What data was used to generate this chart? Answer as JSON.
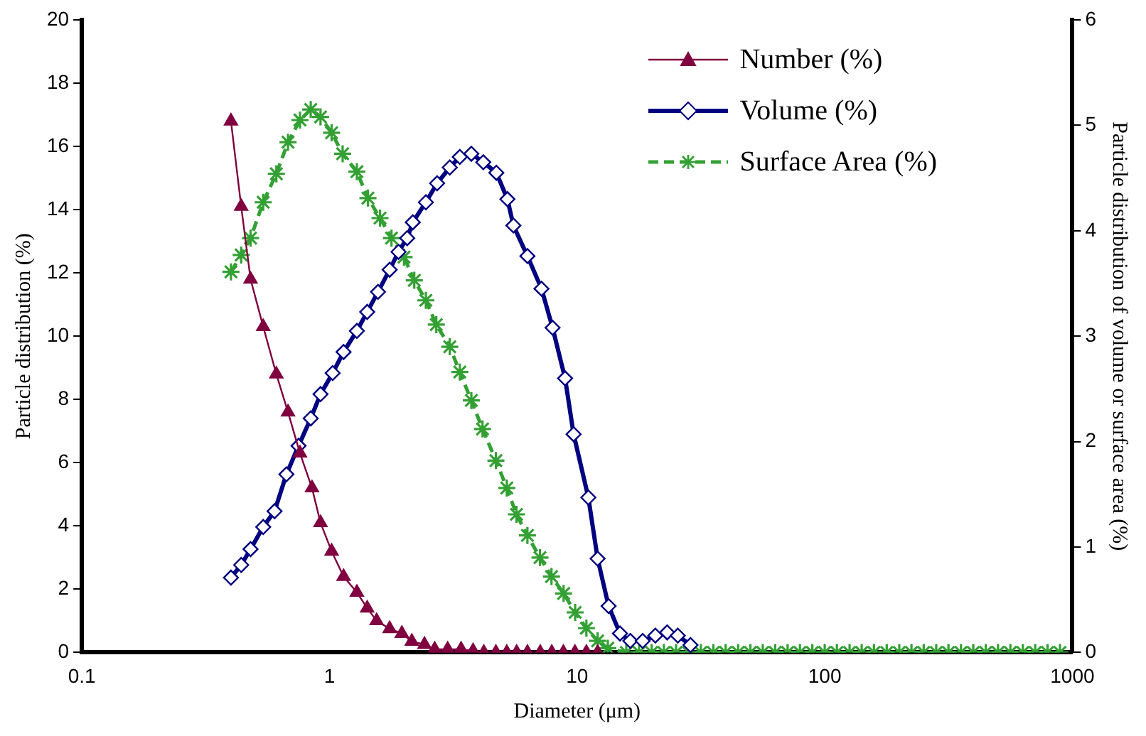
{
  "chart_data": {
    "type": "line",
    "xlabel": "Diameter (μm)",
    "ylabel": "Particle distribution (%)",
    "y2label": "Particle distribution of volume or surface area (%)",
    "log": "x",
    "grid": false,
    "legend": "top right",
    "xlim": [
      0.1,
      1000
    ],
    "xticks": [
      0.1,
      1,
      10,
      100,
      1000
    ],
    "ylim": [
      0,
      20
    ],
    "yticks": [
      0,
      2,
      4,
      6,
      8,
      10,
      12,
      14,
      16,
      18,
      20
    ],
    "y2lim": [
      0,
      6
    ],
    "y2ticks": [
      0,
      1,
      2,
      3,
      4,
      5,
      6
    ],
    "series": [
      {
        "name": "Number (%)",
        "color": "#800040",
        "marker": "triangle",
        "line_style": "solid",
        "x": [
          0.4,
          0.44,
          0.48,
          0.54,
          0.61,
          0.68,
          0.76,
          0.85,
          0.92,
          1.02,
          1.14,
          1.29,
          1.42,
          1.55,
          1.75,
          1.96,
          2.15,
          2.42,
          2.66,
          3.0,
          3.4,
          3.8,
          4.2,
          4.7,
          5.2,
          5.7,
          6.3,
          7.1,
          7.9,
          8.8,
          9.8,
          10.9,
          12.1
        ],
        "values": [
          16.8,
          14.1,
          11.8,
          10.3,
          8.8,
          7.6,
          6.3,
          5.2,
          4.1,
          3.2,
          2.4,
          1.9,
          1.4,
          1.0,
          0.75,
          0.6,
          0.35,
          0.25,
          0.1,
          0.1,
          0.1,
          0.05,
          0,
          0,
          0,
          0,
          0,
          0,
          0,
          0,
          0,
          0,
          0
        ]
      },
      {
        "name": "Volume (%)",
        "color": "#000080",
        "marker": "diamond",
        "line_style": "solid",
        "axis": "y2",
        "x": [
          0.4,
          0.44,
          0.48,
          0.54,
          0.6,
          0.67,
          0.75,
          0.84,
          0.92,
          1.03,
          1.14,
          1.29,
          1.42,
          1.57,
          1.75,
          1.9,
          2.06,
          2.17,
          2.45,
          2.72,
          3.06,
          3.36,
          3.74,
          4.18,
          4.72,
          5.23,
          5.53,
          6.3,
          7.18,
          7.96,
          8.94,
          9.68,
          11.1,
          12.1,
          13.4,
          14.9,
          16.4,
          18.4,
          20.7,
          23.1,
          25.5,
          28.7
        ],
        "values": [
          0.71,
          0.83,
          0.98,
          1.19,
          1.34,
          1.69,
          1.96,
          2.22,
          2.45,
          2.65,
          2.85,
          3.05,
          3.23,
          3.42,
          3.63,
          3.8,
          3.93,
          4.08,
          4.27,
          4.45,
          4.6,
          4.7,
          4.73,
          4.65,
          4.55,
          4.3,
          4.05,
          3.76,
          3.45,
          3.08,
          2.6,
          2.07,
          1.47,
          0.89,
          0.44,
          0.18,
          0.11,
          0.11,
          0.16,
          0.19,
          0.16,
          0.07
        ]
      },
      {
        "name": "Surface Area (%)",
        "color": "#33a033",
        "marker": "cross",
        "line_style": "dashed",
        "axis": "y2",
        "x": [
          0.4,
          0.44,
          0.48,
          0.54,
          0.61,
          0.68,
          0.76,
          0.84,
          0.92,
          1.02,
          1.13,
          1.29,
          1.43,
          1.6,
          1.78,
          2.0,
          2.2,
          2.45,
          2.7,
          3.06,
          3.36,
          3.74,
          4.15,
          4.7,
          5.2,
          5.69,
          6.3,
          7.08,
          7.88,
          8.82,
          9.82,
          10.9,
          12.1,
          13.3,
          15.8,
          17.8,
          20,
          22.4,
          25.1,
          28.2,
          31.6,
          35.5,
          39.8,
          44.7,
          50.1,
          56.2,
          63.1,
          70.8,
          79.4,
          89.1,
          100,
          112,
          126,
          141,
          158,
          178,
          200,
          224,
          251,
          282,
          316,
          355,
          398,
          447,
          501,
          562,
          631,
          708,
          794,
          891
        ],
        "values": [
          3.61,
          3.77,
          3.93,
          4.27,
          4.54,
          4.84,
          5.05,
          5.15,
          5.08,
          4.93,
          4.73,
          4.56,
          4.31,
          4.12,
          3.93,
          3.75,
          3.53,
          3.34,
          3.11,
          2.9,
          2.66,
          2.39,
          2.12,
          1.82,
          1.56,
          1.31,
          1.11,
          0.9,
          0.72,
          0.56,
          0.38,
          0.23,
          0.11,
          0.04,
          0,
          0,
          0,
          0,
          0,
          0,
          0,
          0,
          0,
          0,
          0,
          0,
          0,
          0,
          0,
          0,
          0,
          0,
          0,
          0,
          0,
          0,
          0,
          0,
          0,
          0,
          0,
          0,
          0,
          0,
          0,
          0,
          0,
          0,
          0,
          0
        ]
      }
    ]
  }
}
